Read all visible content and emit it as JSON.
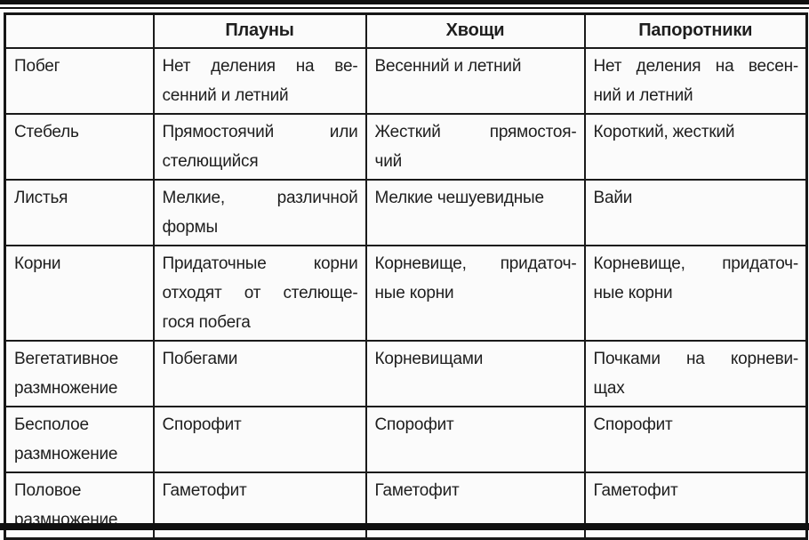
{
  "table": {
    "columns": [
      "",
      "Плауны",
      "Хвощи",
      "Папоротники"
    ],
    "rows": [
      {
        "label": "Побег",
        "cells": [
          "Нет деления на ве-\nсенний и летний",
          "Весенний и летний",
          "Нет деления на весен-\nний и летний"
        ]
      },
      {
        "label": "Стебель",
        "cells": [
          "Прямостоячий или\nстелющийся",
          "Жесткий прямостоя-\nчий",
          "Короткий, жесткий"
        ]
      },
      {
        "label": "Листья",
        "cells": [
          "Мелкие, различной\nформы",
          "Мелкие чешуевидные",
          "Вайи"
        ]
      },
      {
        "label": "Корни",
        "cells": [
          "Придаточные корни\nотходят от стелюще-\nгося побега",
          "Корневище, придаточ-\nные корни",
          "Корневище, придаточ-\nные корни"
        ]
      },
      {
        "label": "Вегетативное\nразмножение",
        "cells": [
          "Побегами",
          "Корневищами",
          "Почками на корневи-\nщах"
        ]
      },
      {
        "label": "Бесполое\nразмножение",
        "cells": [
          "Спорофит",
          "Спорофит",
          "Спорофит"
        ]
      },
      {
        "label": "Половое\nразмножение",
        "cells": [
          "Гаметофит",
          "Гаметофит",
          "Гаметофит"
        ]
      }
    ]
  },
  "colors": {
    "border": "#1a1a1a",
    "text": "#1e1e1e",
    "background": "#fafafa",
    "rule": "#101010"
  }
}
